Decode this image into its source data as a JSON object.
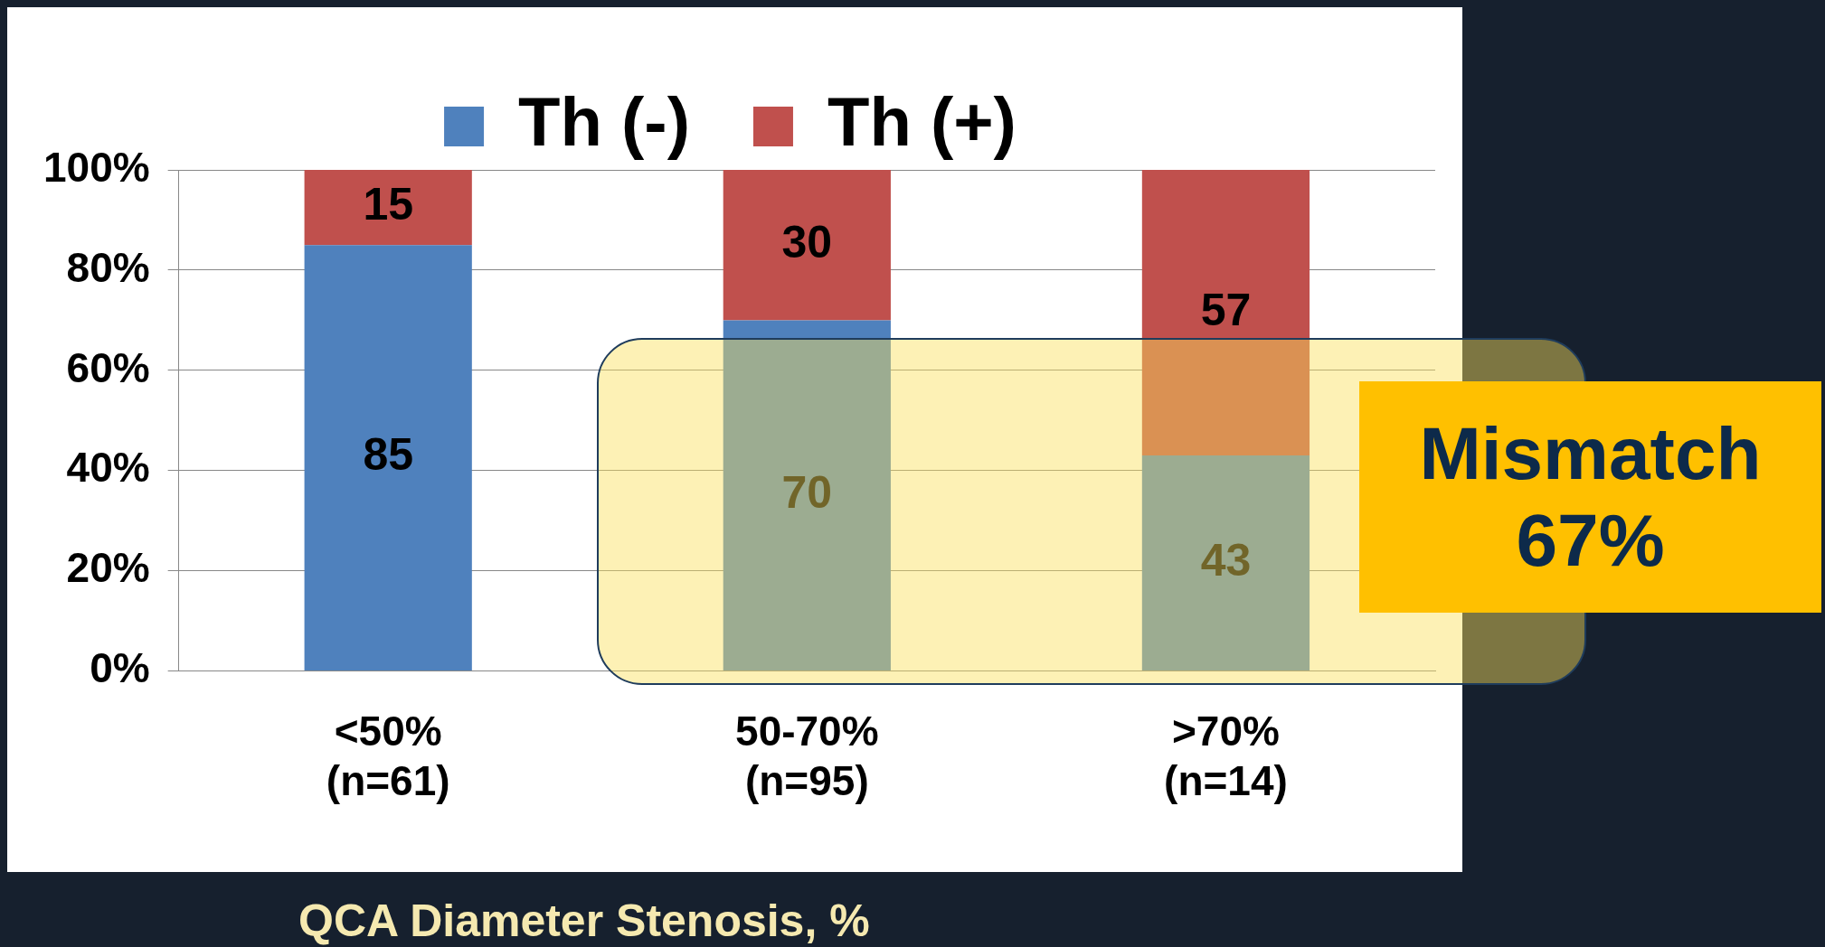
{
  "chart_data": {
    "type": "bar",
    "xlabel": "QCA Diameter Stenosis, %",
    "categories": [
      "<50%\n(n=61)",
      "50-70%\n(n=95)",
      ">70%\n(n=14)"
    ],
    "series": [
      {
        "name": "Th (-)",
        "color": "#4f81bd",
        "values": [
          85,
          70,
          43
        ]
      },
      {
        "name": "Th (+)",
        "color": "#c0504d",
        "values": [
          15,
          30,
          57
        ]
      }
    ],
    "stacked": true,
    "ylim": [
      0,
      100
    ],
    "yticks": [
      {
        "value": 0,
        "label": "0%"
      },
      {
        "value": 20,
        "label": "20%"
      },
      {
        "value": 40,
        "label": "40%"
      },
      {
        "value": 60,
        "label": "60%"
      },
      {
        "value": 80,
        "label": "80%"
      },
      {
        "value": 100,
        "label": "100%"
      }
    ],
    "grid": "y",
    "legend": "top",
    "data_labels": true,
    "annotations": [
      "Mismatch 67%"
    ]
  }
}
